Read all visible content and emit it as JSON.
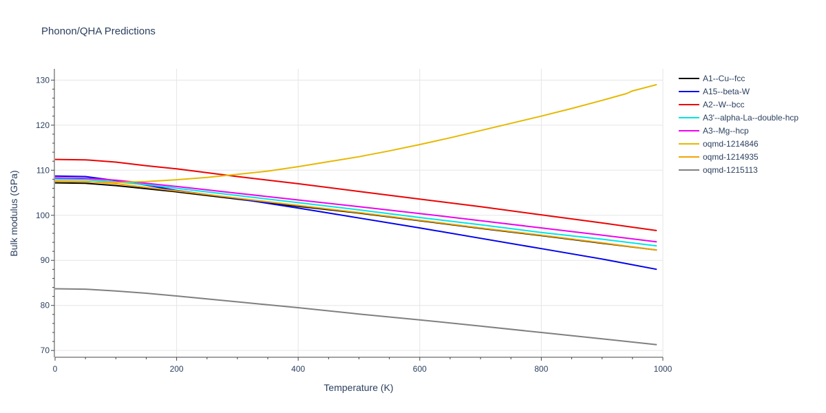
{
  "chart_data": {
    "type": "line",
    "title": "Phonon/QHA Predictions",
    "xlabel": "Temperature (K)",
    "ylabel": "Bulk modulus (GPa)",
    "xlim": [
      0,
      1000
    ],
    "ylim": [
      68.5,
      132.5
    ],
    "xticks": [
      0,
      200,
      400,
      600,
      800,
      1000
    ],
    "yticks": [
      70,
      80,
      90,
      100,
      110,
      120,
      130
    ],
    "grid": true,
    "legend_position": "right",
    "series": [
      {
        "name": "A1--Cu--fcc",
        "color": "#000000",
        "x": [
          0,
          50,
          100,
          150,
          200,
          300,
          400,
          500,
          600,
          700,
          800,
          900,
          990
        ],
        "y": [
          107.2,
          107.1,
          106.6,
          105.9,
          105.2,
          103.6,
          102.0,
          100.5,
          98.8,
          97.1,
          95.5,
          93.8,
          92.3
        ]
      },
      {
        "name": "A15--beta-W",
        "color": "#0000ee",
        "x": [
          0,
          50,
          100,
          150,
          200,
          300,
          400,
          500,
          600,
          700,
          800,
          900,
          990
        ],
        "y": [
          108.7,
          108.6,
          107.7,
          106.7,
          105.5,
          103.7,
          101.6,
          99.4,
          97.2,
          94.9,
          92.6,
          90.3,
          88.0
        ]
      },
      {
        "name": "A2--W--bcc",
        "color": "#ee0000",
        "x": [
          0,
          50,
          100,
          150,
          200,
          300,
          400,
          500,
          600,
          700,
          800,
          900,
          990
        ],
        "y": [
          112.4,
          112.3,
          111.8,
          111.0,
          110.3,
          108.6,
          107.0,
          105.3,
          103.6,
          101.9,
          100.1,
          98.3,
          96.6
        ]
      },
      {
        "name": "A3'--alpha-La--double-hcp",
        "color": "#00e5e5",
        "x": [
          0,
          50,
          100,
          150,
          200,
          300,
          400,
          500,
          600,
          700,
          800,
          900,
          990
        ],
        "y": [
          108.0,
          107.9,
          107.4,
          106.8,
          106.0,
          104.4,
          102.8,
          101.2,
          99.5,
          97.9,
          96.2,
          94.7,
          93.2
        ]
      },
      {
        "name": "A3--Mg--hcp",
        "color": "#ee00ee",
        "x": [
          0,
          50,
          100,
          150,
          200,
          300,
          400,
          500,
          600,
          700,
          800,
          900,
          990
        ],
        "y": [
          108.3,
          108.2,
          107.8,
          107.1,
          106.4,
          104.9,
          103.4,
          101.9,
          100.4,
          98.8,
          97.2,
          95.6,
          94.1
        ]
      },
      {
        "name": "oqmd-1214846",
        "color": "#e6b800",
        "x": [
          0,
          50,
          100,
          150,
          200,
          250,
          300,
          350,
          400,
          450,
          500,
          550,
          600,
          650,
          700,
          750,
          800,
          850,
          900,
          940,
          950,
          990
        ],
        "y": [
          107.5,
          107.4,
          107.3,
          107.5,
          107.9,
          108.4,
          109.1,
          109.8,
          110.8,
          111.9,
          113.0,
          114.3,
          115.7,
          117.2,
          118.8,
          120.4,
          122.0,
          123.7,
          125.5,
          127.0,
          127.6,
          129.0
        ]
      },
      {
        "name": "oqmd-1214935",
        "color": "#f0a500",
        "x": [
          0,
          50,
          100,
          150,
          200,
          300,
          400,
          500,
          600,
          700,
          800,
          900,
          990
        ],
        "y": [
          107.6,
          107.5,
          107.0,
          106.2,
          105.4,
          103.8,
          102.2,
          100.6,
          98.9,
          97.2,
          95.6,
          93.9,
          92.3
        ]
      },
      {
        "name": "oqmd-1215113",
        "color": "#7f7f7f",
        "x": [
          0,
          50,
          100,
          150,
          200,
          300,
          400,
          500,
          600,
          700,
          800,
          900,
          990
        ],
        "y": [
          83.7,
          83.6,
          83.2,
          82.7,
          82.1,
          80.8,
          79.5,
          78.1,
          76.8,
          75.4,
          74.0,
          72.6,
          71.3
        ]
      }
    ]
  }
}
